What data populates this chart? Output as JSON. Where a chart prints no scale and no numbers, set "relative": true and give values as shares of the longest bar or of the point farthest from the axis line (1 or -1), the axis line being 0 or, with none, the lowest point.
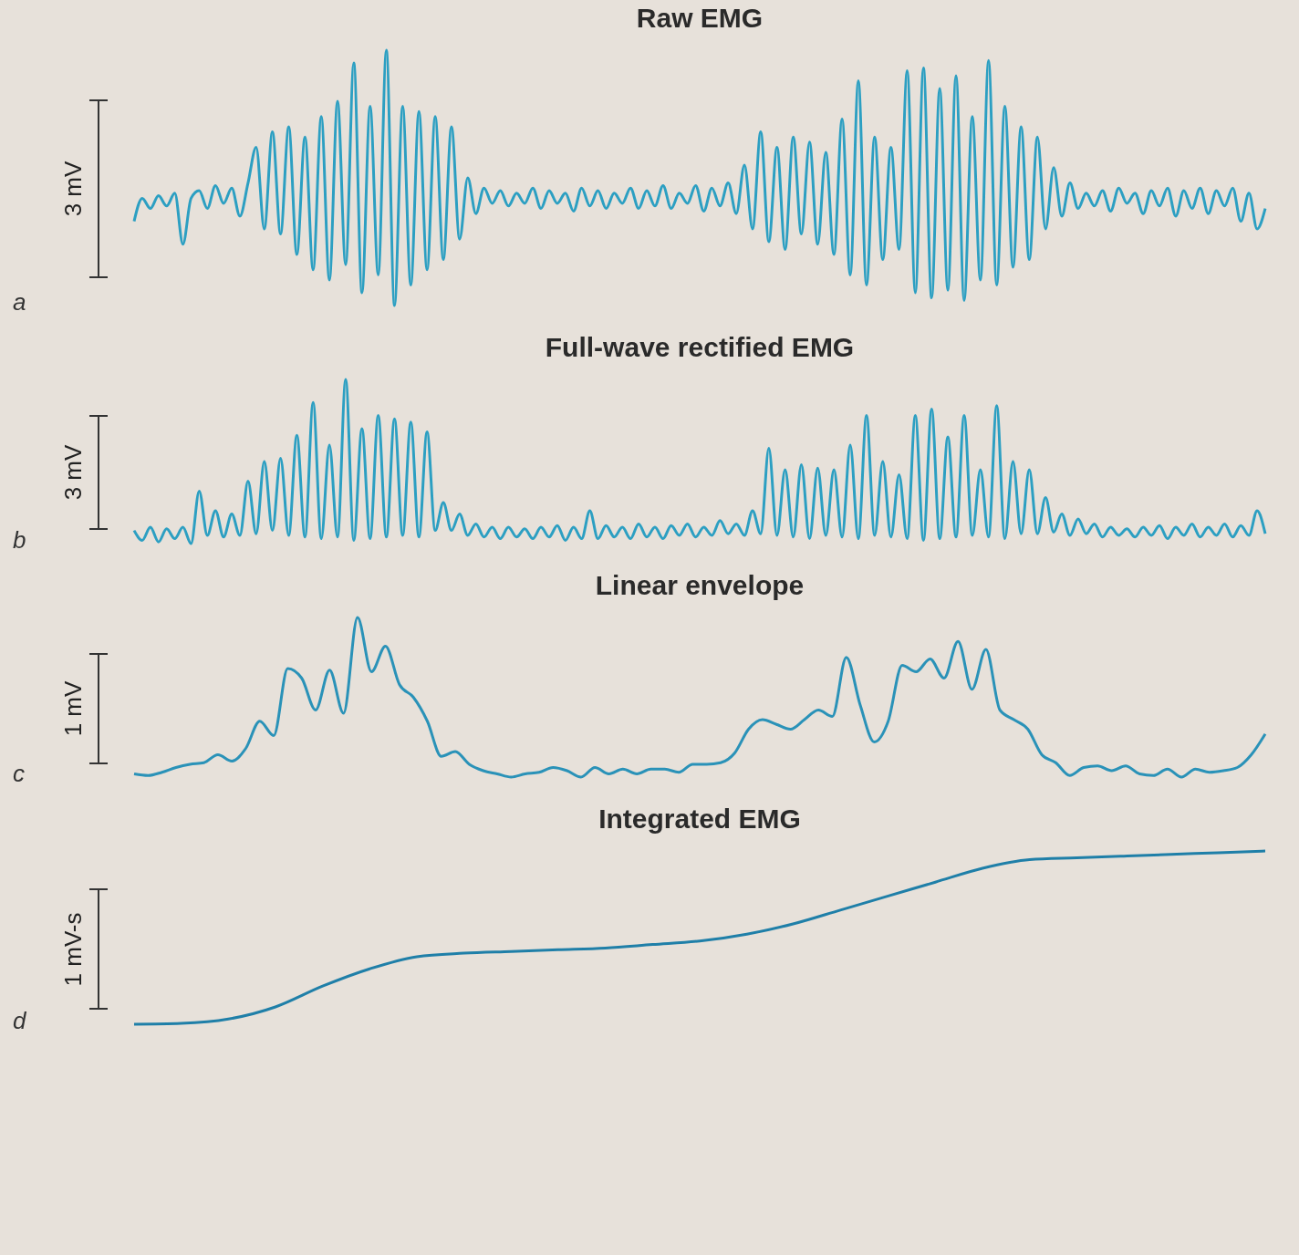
{
  "chart_data": [
    {
      "type": "line",
      "title": "Raw EMG",
      "relative": true,
      "annotations": [
        "3 mV",
        "a"
      ],
      "categories": [
        null,
        null,
        null,
        null,
        null,
        null,
        null,
        null,
        null,
        null,
        null,
        null,
        null,
        null,
        null,
        null,
        null,
        null,
        null,
        null,
        null,
        null,
        null,
        null,
        null,
        null,
        null,
        null,
        null,
        null,
        null,
        null,
        null,
        null,
        null,
        null,
        null,
        null,
        null,
        null,
        null,
        null,
        null,
        null,
        null,
        null,
        null,
        null,
        null,
        null,
        null,
        null,
        null,
        null,
        null,
        null,
        null,
        null,
        null,
        null,
        null,
        null,
        null,
        null,
        null,
        null,
        null,
        null,
        null,
        null,
        null,
        null,
        null,
        null,
        null,
        null,
        null,
        null,
        null,
        null,
        null,
        null,
        null,
        null,
        null,
        null,
        null,
        null,
        null,
        null,
        null,
        null,
        null,
        null,
        null,
        null,
        null,
        null,
        null,
        null,
        null,
        null,
        null,
        null,
        null,
        null,
        null,
        null,
        null,
        null,
        null,
        null,
        null,
        null,
        null,
        null,
        null,
        null,
        null,
        null,
        null,
        null,
        null,
        null,
        null,
        null,
        null,
        null,
        null,
        null,
        null,
        null,
        null,
        null,
        null,
        null,
        null,
        null,
        null,
        null
      ],
      "series": [
        {
          "color": "#2c9fc2",
          "values": [
            0.33,
            0.42,
            0.38,
            0.43,
            0.39,
            0.44,
            0.24,
            0.42,
            0.45,
            0.38,
            0.47,
            0.4,
            0.46,
            0.35,
            0.48,
            0.62,
            0.3,
            0.68,
            0.28,
            0.7,
            0.2,
            0.66,
            0.14,
            0.74,
            0.1,
            0.8,
            0.16,
            0.95,
            0.05,
            0.78,
            0.12,
            1.0,
            0.0,
            0.78,
            0.08,
            0.76,
            0.14,
            0.74,
            0.18,
            0.7,
            0.26,
            0.5,
            0.36,
            0.46,
            0.4,
            0.45,
            0.39,
            0.44,
            0.4,
            0.46,
            0.38,
            0.45,
            0.4,
            0.44,
            0.37,
            0.46,
            0.39,
            0.45,
            0.38,
            0.44,
            0.4,
            0.46,
            0.38,
            0.45,
            0.39,
            0.47,
            0.38,
            0.44,
            0.4,
            0.47,
            0.37,
            0.46,
            0.39,
            0.48,
            0.36,
            0.55,
            0.3,
            0.68,
            0.25,
            0.62,
            0.22,
            0.66,
            0.28,
            0.64,
            0.24,
            0.6,
            0.2,
            0.73,
            0.12,
            0.88,
            0.08,
            0.66,
            0.18,
            0.62,
            0.22,
            0.92,
            0.05,
            0.93,
            0.03,
            0.85,
            0.06,
            0.9,
            0.02,
            0.74,
            0.1,
            0.96,
            0.08,
            0.78,
            0.15,
            0.7,
            0.18,
            0.66,
            0.3,
            0.54,
            0.35,
            0.48,
            0.38,
            0.44,
            0.39,
            0.45,
            0.37,
            0.46,
            0.4,
            0.44,
            0.36,
            0.45,
            0.39,
            0.46,
            0.35,
            0.45,
            0.38,
            0.46,
            0.36,
            0.45,
            0.39,
            0.46,
            0.33,
            0.44,
            0.3,
            0.38
          ]
        }
      ]
    },
    {
      "type": "line",
      "title": "Full-wave rectified EMG",
      "relative": true,
      "annotations": [
        "3 mV",
        "b"
      ],
      "categories": [
        null,
        null,
        null,
        null,
        null,
        null,
        null,
        null,
        null,
        null,
        null,
        null,
        null,
        null,
        null,
        null,
        null,
        null,
        null,
        null,
        null,
        null,
        null,
        null,
        null,
        null,
        null,
        null,
        null,
        null,
        null,
        null,
        null,
        null,
        null,
        null,
        null,
        null,
        null,
        null,
        null,
        null,
        null,
        null,
        null,
        null,
        null,
        null,
        null,
        null,
        null,
        null,
        null,
        null,
        null,
        null,
        null,
        null,
        null,
        null,
        null,
        null,
        null,
        null,
        null,
        null,
        null,
        null,
        null,
        null,
        null,
        null,
        null,
        null,
        null,
        null,
        null,
        null,
        null,
        null,
        null,
        null,
        null,
        null,
        null,
        null,
        null,
        null,
        null,
        null,
        null,
        null,
        null,
        null,
        null,
        null,
        null,
        null,
        null,
        null,
        null,
        null,
        null,
        null,
        null,
        null,
        null,
        null,
        null,
        null,
        null,
        null,
        null,
        null,
        null,
        null,
        null,
        null,
        null,
        null,
        null,
        null,
        null,
        null,
        null,
        null,
        null,
        null,
        null,
        null,
        null,
        null,
        null,
        null,
        null,
        null,
        null,
        null,
        null,
        null
      ],
      "series": [
        {
          "color": "#2c9fc2",
          "values": [
            0.08,
            0.02,
            0.1,
            0.01,
            0.09,
            0.03,
            0.1,
            0.0,
            0.32,
            0.05,
            0.2,
            0.04,
            0.18,
            0.05,
            0.38,
            0.06,
            0.5,
            0.08,
            0.52,
            0.05,
            0.66,
            0.04,
            0.86,
            0.03,
            0.6,
            0.04,
            1.0,
            0.02,
            0.7,
            0.03,
            0.78,
            0.04,
            0.76,
            0.05,
            0.74,
            0.04,
            0.68,
            0.08,
            0.25,
            0.08,
            0.18,
            0.05,
            0.12,
            0.04,
            0.1,
            0.03,
            0.1,
            0.04,
            0.09,
            0.03,
            0.1,
            0.04,
            0.11,
            0.02,
            0.1,
            0.03,
            0.2,
            0.03,
            0.11,
            0.04,
            0.1,
            0.03,
            0.12,
            0.04,
            0.1,
            0.03,
            0.11,
            0.05,
            0.12,
            0.04,
            0.1,
            0.05,
            0.14,
            0.06,
            0.12,
            0.05,
            0.2,
            0.06,
            0.58,
            0.05,
            0.45,
            0.04,
            0.48,
            0.03,
            0.46,
            0.05,
            0.45,
            0.04,
            0.6,
            0.03,
            0.78,
            0.05,
            0.5,
            0.04,
            0.42,
            0.03,
            0.78,
            0.02,
            0.82,
            0.03,
            0.65,
            0.04,
            0.78,
            0.05,
            0.45,
            0.04,
            0.84,
            0.03,
            0.5,
            0.06,
            0.45,
            0.06,
            0.28,
            0.07,
            0.18,
            0.05,
            0.15,
            0.06,
            0.12,
            0.04,
            0.1,
            0.05,
            0.09,
            0.04,
            0.1,
            0.05,
            0.11,
            0.03,
            0.1,
            0.05,
            0.12,
            0.04,
            0.1,
            0.05,
            0.12,
            0.04,
            0.11,
            0.05,
            0.2,
            0.06
          ]
        }
      ]
    },
    {
      "type": "line",
      "title": "Linear envelope",
      "relative": true,
      "annotations": [
        "1 mV",
        "c"
      ],
      "categories": [
        null,
        null,
        null,
        null,
        null,
        null,
        null,
        null,
        null,
        null,
        null,
        null,
        null,
        null,
        null,
        null,
        null,
        null,
        null,
        null,
        null,
        null,
        null,
        null,
        null,
        null,
        null,
        null,
        null,
        null,
        null,
        null,
        null,
        null,
        null,
        null,
        null,
        null,
        null,
        null,
        null,
        null,
        null,
        null,
        null,
        null,
        null,
        null,
        null,
        null,
        null,
        null,
        null,
        null,
        null,
        null,
        null,
        null,
        null,
        null,
        null,
        null,
        null,
        null,
        null,
        null,
        null,
        null,
        null,
        null,
        null,
        null,
        null,
        null,
        null,
        null,
        null,
        null,
        null,
        null,
        null,
        null
      ],
      "series": [
        {
          "color": "#2a92b8",
          "values": [
            0.02,
            0.01,
            0.03,
            0.06,
            0.08,
            0.09,
            0.14,
            0.1,
            0.18,
            0.35,
            0.26,
            0.68,
            0.62,
            0.42,
            0.67,
            0.4,
            1.0,
            0.66,
            0.82,
            0.58,
            0.5,
            0.35,
            0.13,
            0.16,
            0.08,
            0.04,
            0.02,
            0.0,
            0.02,
            0.03,
            0.06,
            0.04,
            0.0,
            0.06,
            0.02,
            0.05,
            0.02,
            0.05,
            0.05,
            0.03,
            0.08,
            0.08,
            0.09,
            0.15,
            0.3,
            0.36,
            0.33,
            0.3,
            0.36,
            0.42,
            0.38,
            0.75,
            0.45,
            0.22,
            0.35,
            0.7,
            0.66,
            0.74,
            0.62,
            0.85,
            0.55,
            0.8,
            0.42,
            0.36,
            0.3,
            0.14,
            0.09,
            0.01,
            0.06,
            0.07,
            0.04,
            0.07,
            0.02,
            0.01,
            0.05,
            0.0,
            0.05,
            0.03,
            0.04,
            0.06,
            0.14,
            0.27
          ]
        }
      ]
    },
    {
      "type": "line",
      "title": "Integrated EMG",
      "relative": true,
      "annotations": [
        "1 mV-s",
        "d"
      ],
      "categories": [
        null,
        null,
        null,
        null,
        null,
        null,
        null,
        null,
        null,
        null,
        null,
        null,
        null,
        null,
        null,
        null,
        null,
        null,
        null,
        null,
        null,
        null,
        null,
        null,
        null
      ],
      "series": [
        {
          "color": "#1f7fa8",
          "values": [
            0,
            0.005,
            0.03,
            0.1,
            0.22,
            0.32,
            0.39,
            0.41,
            0.42,
            0.43,
            0.44,
            0.46,
            0.48,
            0.52,
            0.58,
            0.66,
            0.74,
            0.82,
            0.9,
            0.95,
            0.96,
            0.97,
            0.98,
            0.99,
            1.0
          ]
        }
      ]
    }
  ]
}
